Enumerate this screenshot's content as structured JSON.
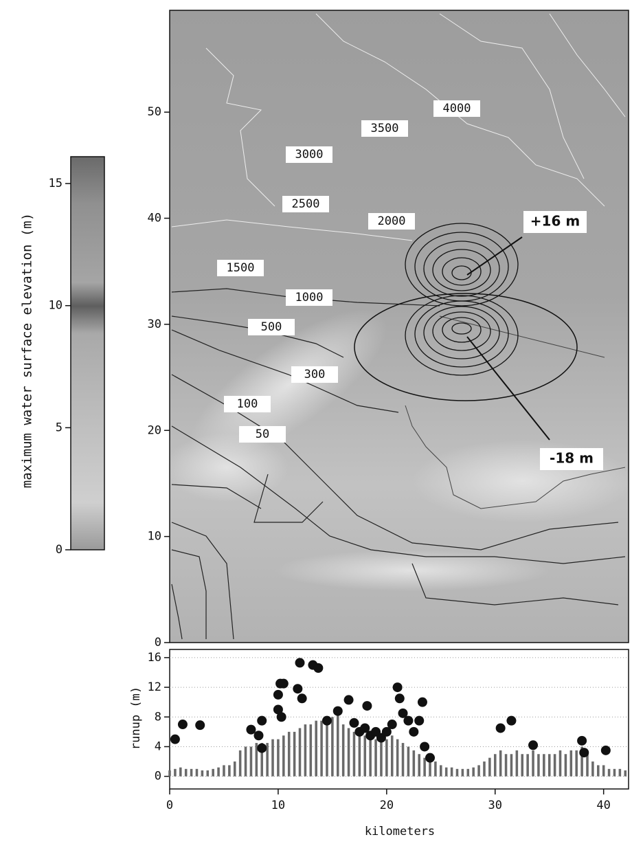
{
  "chart_data": [
    {
      "type": "map",
      "ylim": [
        0,
        59.6
      ],
      "xlim": [
        0,
        42.3
      ],
      "yticks": [
        0,
        10,
        20,
        30,
        40,
        50
      ],
      "contour_labels": [
        "4000",
        "3500",
        "3000",
        "2500",
        "2000",
        "1500",
        "1000",
        "500",
        "300",
        "100",
        "50"
      ],
      "annotations": [
        "+16 m",
        "-18 m"
      ],
      "colorbar": {
        "label": "maximum water surface elevation (m)",
        "ylim": [
          0,
          16.1
        ],
        "yticks": [
          0,
          5,
          10,
          15
        ]
      }
    },
    {
      "type": "runup",
      "xlabel": "kilometers",
      "ylabel": "runup (m)",
      "xlim": [
        0,
        42.3
      ],
      "ylim": [
        -1.7,
        17.1
      ],
      "xticks": [
        0,
        10,
        20,
        30,
        40
      ],
      "yticks": [
        0,
        4,
        8,
        12,
        16
      ],
      "grid": true,
      "bars": {
        "color": "#6a6a6a",
        "x": [
          0,
          0.5,
          1,
          1.5,
          2,
          2.5,
          3,
          3.5,
          4,
          4.5,
          5,
          5.5,
          6,
          6.5,
          7,
          7.5,
          8,
          8.5,
          9,
          9.5,
          10,
          10.5,
          11,
          11.5,
          12,
          12.5,
          13,
          13.5,
          14,
          14.5,
          15,
          15.5,
          16,
          16.5,
          17,
          17.5,
          18,
          18.5,
          19,
          19.5,
          20,
          20.5,
          21,
          21.5,
          22,
          22.5,
          23,
          23.5,
          24,
          24.5,
          25,
          25.5,
          26,
          26.5,
          27,
          27.5,
          28,
          28.5,
          29,
          29.5,
          30,
          30.5,
          31,
          31.5,
          32,
          32.5,
          33,
          33.5,
          34,
          34.5,
          35,
          35.5,
          36,
          36.5,
          37,
          37.5,
          38,
          38.5,
          39,
          39.5,
          40,
          40.5,
          41,
          41.5,
          42
        ],
        "values": [
          0.8,
          1,
          1.2,
          1,
          1,
          1,
          0.8,
          0.8,
          1,
          1.2,
          1.5,
          1.5,
          2,
          3.5,
          4,
          4,
          4.5,
          4.5,
          4.5,
          5,
          5,
          5.5,
          6,
          6,
          6.5,
          7,
          7,
          7.5,
          7.5,
          8,
          8,
          8.5,
          7,
          6.5,
          6,
          6,
          5.5,
          5.5,
          5,
          5,
          5,
          5.5,
          5,
          4.5,
          4,
          3.5,
          3,
          2.5,
          2.5,
          2,
          1.5,
          1.2,
          1.2,
          1,
          1,
          1,
          1.2,
          1.5,
          2,
          2.5,
          3,
          3.5,
          3,
          3,
          3.5,
          3,
          3,
          3.5,
          3,
          3,
          3,
          3,
          3.5,
          3,
          3.5,
          3.5,
          4,
          3,
          2,
          1.5,
          1.5,
          1,
          1,
          1,
          0.8
        ]
      },
      "points": {
        "color": "#111",
        "x": [
          0.5,
          1.2,
          2.8,
          7.5,
          8.2,
          8.5,
          8.5,
          10,
          10.2,
          10.5,
          10,
          10.3,
          11.8,
          12,
          12.2,
          13.2,
          13.7,
          14.5,
          15.5,
          16.5,
          17,
          17.5,
          18,
          18.2,
          18.5,
          19,
          19.5,
          20,
          20.5,
          21,
          21.2,
          21.5,
          22,
          22.5,
          23,
          23.3,
          23.5,
          24,
          30.5,
          31.5,
          33.5,
          38,
          38.2,
          40.2
        ],
        "values": [
          5,
          7,
          6.9,
          6.3,
          5.5,
          3.8,
          7.5,
          11,
          12.5,
          12.5,
          9,
          8,
          11.8,
          15.3,
          10.5,
          15,
          14.6,
          7.5,
          8.8,
          10.3,
          7.2,
          6,
          6.5,
          9.5,
          5.5,
          6,
          5.2,
          6,
          7,
          12,
          10.5,
          8.5,
          7.5,
          6,
          7.5,
          10,
          4,
          2.5,
          6.5,
          7.5,
          4.2,
          4.8,
          3.2,
          3.5
        ]
      }
    }
  ]
}
